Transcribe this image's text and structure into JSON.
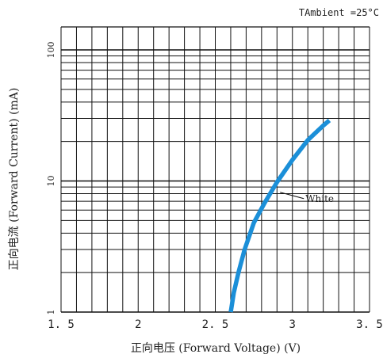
{
  "chart_data": {
    "type": "line",
    "title": "",
    "condition_text": "TAmbient =25°C",
    "xlabel": "正向电压 (Forward Voltage) (V)",
    "ylabel": "正向电流 (Forward Current) (mA)",
    "xlim": [
      1.5,
      3.5
    ],
    "ylim": [
      1,
      150
    ],
    "yscale": "log",
    "xticks": [
      1.5,
      2,
      2.5,
      3,
      3.5
    ],
    "xtick_labels": [
      "1. 5",
      "2",
      "2. 5",
      "3",
      "3. 5"
    ],
    "yticks": [
      1,
      10,
      100
    ],
    "ytick_labels": [
      "1",
      "10",
      "100"
    ],
    "grid": true,
    "series": [
      {
        "name": "White",
        "color": "#1b8fd8",
        "x": [
          2.6,
          2.62,
          2.65,
          2.69,
          2.75,
          2.82,
          2.9,
          3.0,
          3.1,
          3.2,
          3.24
        ],
        "y": [
          1,
          1.4,
          2.0,
          3.0,
          4.8,
          6.8,
          9.8,
          14.5,
          20.5,
          26.5,
          29
        ]
      }
    ],
    "annotations": [
      {
        "text": "White",
        "series": "White",
        "x": 2.92,
        "y": 8.2
      }
    ]
  }
}
